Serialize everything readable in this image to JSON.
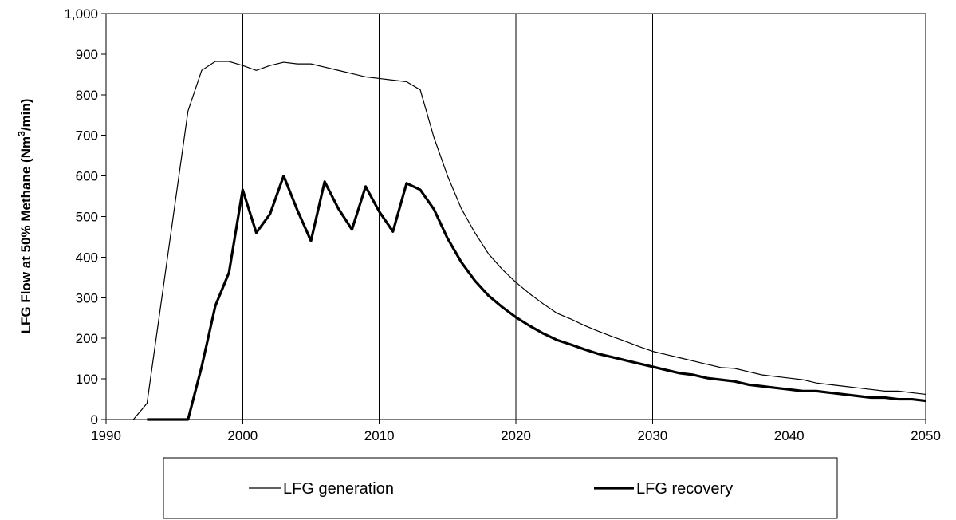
{
  "chart_data": {
    "type": "line",
    "title": "",
    "xlabel": "",
    "ylabel": "LFG Flow at 50% Methane (Nm",
    "ylabel_sup": "3",
    "ylabel_end": "/min)",
    "xlim": [
      1990,
      2050
    ],
    "ylim": [
      0,
      1000
    ],
    "x_ticks": [
      1990,
      2000,
      2010,
      2020,
      2030,
      2040,
      2050
    ],
    "x_tick_labels": [
      "1990",
      "2000",
      "2010",
      "2020",
      "2030",
      "2040",
      "2050"
    ],
    "y_ticks": [
      0,
      100,
      200,
      300,
      400,
      500,
      600,
      700,
      800,
      900,
      1000
    ],
    "y_tick_labels": [
      "0",
      "100",
      "200",
      "300",
      "400",
      "500",
      "600",
      "700",
      "800",
      "900",
      "1,000"
    ],
    "grid": "vertical",
    "legend": "bottom",
    "series": [
      {
        "name": "LFG generation",
        "line_weight": "thin",
        "color": "#000000",
        "points": [
          [
            1992,
            0
          ],
          [
            1993,
            40
          ],
          [
            1994,
            280
          ],
          [
            1995,
            520
          ],
          [
            1996,
            760
          ],
          [
            1997,
            860
          ],
          [
            1998,
            882
          ],
          [
            1999,
            882
          ],
          [
            2000,
            872
          ],
          [
            2001,
            860
          ],
          [
            2002,
            872
          ],
          [
            2003,
            880
          ],
          [
            2004,
            876
          ],
          [
            2005,
            876
          ],
          [
            2006,
            868
          ],
          [
            2007,
            860
          ],
          [
            2008,
            852
          ],
          [
            2009,
            844
          ],
          [
            2010,
            840
          ],
          [
            2011,
            836
          ],
          [
            2012,
            832
          ],
          [
            2013,
            812
          ],
          [
            2014,
            695
          ],
          [
            2015,
            600
          ],
          [
            2016,
            520
          ],
          [
            2017,
            460
          ],
          [
            2018,
            408
          ],
          [
            2019,
            370
          ],
          [
            2020,
            338
          ],
          [
            2021,
            310
          ],
          [
            2022,
            285
          ],
          [
            2023,
            262
          ],
          [
            2024,
            248
          ],
          [
            2025,
            232
          ],
          [
            2026,
            218
          ],
          [
            2027,
            205
          ],
          [
            2028,
            193
          ],
          [
            2029,
            180
          ],
          [
            2030,
            168
          ],
          [
            2031,
            160
          ],
          [
            2032,
            152
          ],
          [
            2033,
            144
          ],
          [
            2034,
            136
          ],
          [
            2035,
            128
          ],
          [
            2036,
            126
          ],
          [
            2037,
            118
          ],
          [
            2038,
            110
          ],
          [
            2039,
            106
          ],
          [
            2040,
            102
          ],
          [
            2041,
            98
          ],
          [
            2042,
            90
          ],
          [
            2043,
            86
          ],
          [
            2044,
            82
          ],
          [
            2045,
            78
          ],
          [
            2046,
            74
          ],
          [
            2047,
            70
          ],
          [
            2048,
            70
          ],
          [
            2049,
            66
          ],
          [
            2050,
            62
          ]
        ]
      },
      {
        "name": "LFG recovery",
        "line_weight": "thick",
        "color": "#000000",
        "points": [
          [
            1993,
            0
          ],
          [
            1994,
            0
          ],
          [
            1995,
            0
          ],
          [
            1996,
            0
          ],
          [
            1997,
            130
          ],
          [
            1998,
            280
          ],
          [
            1999,
            362
          ],
          [
            2000,
            566
          ],
          [
            2001,
            460
          ],
          [
            2002,
            506
          ],
          [
            2003,
            600
          ],
          [
            2004,
            516
          ],
          [
            2005,
            440
          ],
          [
            2006,
            586
          ],
          [
            2007,
            520
          ],
          [
            2008,
            468
          ],
          [
            2009,
            574
          ],
          [
            2010,
            512
          ],
          [
            2011,
            463
          ],
          [
            2012,
            582
          ],
          [
            2013,
            566
          ],
          [
            2014,
            518
          ],
          [
            2015,
            446
          ],
          [
            2016,
            388
          ],
          [
            2017,
            342
          ],
          [
            2018,
            305
          ],
          [
            2019,
            277
          ],
          [
            2020,
            252
          ],
          [
            2021,
            231
          ],
          [
            2022,
            212
          ],
          [
            2023,
            196
          ],
          [
            2024,
            185
          ],
          [
            2025,
            173
          ],
          [
            2026,
            162
          ],
          [
            2027,
            154
          ],
          [
            2028,
            146
          ],
          [
            2029,
            138
          ],
          [
            2030,
            130
          ],
          [
            2031,
            122
          ],
          [
            2032,
            114
          ],
          [
            2033,
            110
          ],
          [
            2034,
            102
          ],
          [
            2035,
            98
          ],
          [
            2036,
            94
          ],
          [
            2037,
            86
          ],
          [
            2038,
            82
          ],
          [
            2039,
            78
          ],
          [
            2040,
            74
          ],
          [
            2041,
            70
          ],
          [
            2042,
            70
          ],
          [
            2043,
            66
          ],
          [
            2044,
            62
          ],
          [
            2045,
            58
          ],
          [
            2046,
            54
          ],
          [
            2047,
            54
          ],
          [
            2048,
            50
          ],
          [
            2049,
            50
          ],
          [
            2050,
            46
          ]
        ]
      }
    ]
  }
}
